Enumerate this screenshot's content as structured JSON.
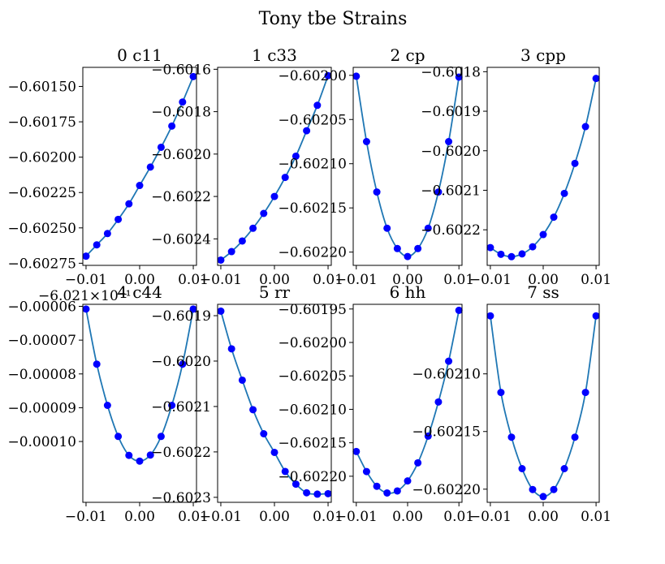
{
  "figure_title": "Tony tbe Strains",
  "colors": {
    "line": "#1f77b4",
    "marker": "#0000ff",
    "axes": "#000000"
  },
  "chart_data": [
    {
      "type": "line",
      "title": "0 c11",
      "x": [
        -0.01,
        -0.008,
        -0.006,
        -0.004,
        -0.002,
        0.0,
        0.002,
        0.004,
        0.006,
        0.008,
        0.01
      ],
      "series": [
        {
          "values": [
            -0.6027,
            -0.60262,
            -0.60254,
            -0.60244,
            -0.60233,
            -0.6022,
            -0.60207,
            -0.60193,
            -0.60178,
            -0.60161,
            -0.60143
          ]
        }
      ],
      "xticks": [
        "−0.01",
        "0.00",
        "0.01"
      ],
      "yticks": [
        "−0.60275",
        "−0.60250",
        "−0.60225",
        "−0.60200",
        "−0.60175",
        "−0.60150"
      ],
      "ytick_values": [
        -0.60275,
        -0.6025,
        -0.60225,
        -0.602,
        -0.60175,
        -0.6015
      ],
      "xlim": [
        -0.0106,
        0.0106
      ],
      "ylim": [
        -0.602765,
        -0.601365
      ]
    },
    {
      "type": "line",
      "title": "1 c33",
      "x": [
        -0.01,
        -0.008,
        -0.006,
        -0.004,
        -0.002,
        0.0,
        0.002,
        0.004,
        0.006,
        0.008,
        0.01
      ],
      "series": [
        {
          "values": [
            -0.6025,
            -0.60246,
            -0.60241,
            -0.60235,
            -0.60228,
            -0.6022,
            -0.60211,
            -0.60201,
            -0.60189,
            -0.60177,
            -0.60163
          ]
        }
      ],
      "xticks": [
        "−0.01",
        "0.00",
        "0.01"
      ],
      "yticks": [
        "−0.6024",
        "−0.6022",
        "−0.6020",
        "−0.6018",
        "−0.6016"
      ],
      "ytick_values": [
        -0.6024,
        -0.6022,
        -0.602,
        -0.6018,
        -0.6016
      ],
      "xlim": [
        -0.0106,
        0.0106
      ],
      "ylim": [
        -0.602525,
        -0.601591
      ]
    },
    {
      "type": "line",
      "title": "2 cp",
      "x": [
        -0.01,
        -0.008,
        -0.006,
        -0.004,
        -0.002,
        0.0,
        0.002,
        0.004,
        0.006,
        0.008,
        0.01
      ],
      "series": [
        {
          "values": [
            -0.602001,
            -0.602075,
            -0.602132,
            -0.602173,
            -0.602196,
            -0.602205,
            -0.602196,
            -0.602173,
            -0.602132,
            -0.602075,
            -0.602002
          ]
        }
      ],
      "xticks": [
        "−0.01",
        "0.00",
        "0.01"
      ],
      "yticks": [
        "−0.60220",
        "−0.60215",
        "−0.60210",
        "−0.60205",
        "−0.60200"
      ],
      "ytick_values": [
        -0.6022,
        -0.60215,
        -0.6021,
        -0.60205,
        -0.602
      ],
      "xlim": [
        -0.0106,
        0.0106
      ],
      "ylim": [
        -0.602215,
        -0.601991
      ]
    },
    {
      "type": "line",
      "title": "3 cpp",
      "x": [
        -0.01,
        -0.008,
        -0.006,
        -0.004,
        -0.002,
        0.0,
        0.002,
        0.004,
        0.006,
        0.008,
        0.01
      ],
      "series": [
        {
          "values": [
            -0.602245,
            -0.602262,
            -0.602268,
            -0.602261,
            -0.602243,
            -0.602212,
            -0.602168,
            -0.602108,
            -0.602032,
            -0.601939,
            -0.601817
          ]
        }
      ],
      "xticks": [
        "−0.01",
        "0.00",
        "0.01"
      ],
      "yticks": [
        "−0.6022",
        "−0.6021",
        "−0.6020",
        "−0.6019",
        "−0.6018"
      ],
      "ytick_values": [
        -0.6022,
        -0.6021,
        -0.602,
        -0.6019,
        -0.6018
      ],
      "xlim": [
        -0.0106,
        0.0106
      ],
      "ylim": [
        -0.60229,
        -0.601789
      ]
    },
    {
      "type": "line",
      "title": "4 c44",
      "offset_label": "−6.021×10⁻¹",
      "x": [
        -0.01,
        -0.008,
        -0.006,
        -0.004,
        -0.002,
        0.0,
        0.002,
        0.004,
        0.006,
        0.008,
        0.01
      ],
      "series": [
        {
          "values": [
            -6.08e-05,
            -7.71e-05,
            -8.93e-05,
            -9.85e-05,
            -0.0001041,
            -0.0001058,
            -0.000104,
            -9.85e-05,
            -8.93e-05,
            -7.71e-05,
            -6.08e-05
          ]
        }
      ],
      "xticks": [
        "−0.01",
        "0.00",
        "0.01"
      ],
      "yticks": [
        "−0.00010",
        "−0.00009",
        "−0.00008",
        "−0.00007",
        "−0.00006"
      ],
      "ytick_values": [
        -0.0001,
        -9e-05,
        -8e-05,
        -7e-05,
        -6e-05
      ],
      "xlim": [
        -0.0106,
        0.0106
      ],
      "ylim": [
        -0.000118,
        -5.94e-05
      ]
    },
    {
      "type": "line",
      "title": "5 rr",
      "x": [
        -0.01,
        -0.008,
        -0.006,
        -0.004,
        -0.002,
        0.0,
        0.002,
        0.004,
        0.006,
        0.008,
        0.01
      ],
      "series": [
        {
          "values": [
            -0.60189,
            -0.601973,
            -0.602042,
            -0.602107,
            -0.60216,
            -0.602201,
            -0.602243,
            -0.602271,
            -0.60229,
            -0.602293,
            -0.602292
          ]
        }
      ],
      "xticks": [
        "−0.01",
        "0.00",
        "0.01"
      ],
      "yticks": [
        "−0.6023",
        "−0.6022",
        "−0.6021",
        "−0.6020",
        "−0.6019"
      ],
      "ytick_values": [
        -0.6023,
        -0.6022,
        -0.6021,
        -0.602,
        -0.6019
      ],
      "xlim": [
        -0.0106,
        0.0106
      ],
      "ylim": [
        -0.602311,
        -0.601875
      ]
    },
    {
      "type": "line",
      "title": "6 hh",
      "x": [
        -0.01,
        -0.008,
        -0.006,
        -0.004,
        -0.002,
        0.0,
        0.002,
        0.004,
        0.006,
        0.008,
        0.01
      ],
      "series": [
        {
          "values": [
            -0.602163,
            -0.602193,
            -0.602215,
            -0.602225,
            -0.602222,
            -0.602207,
            -0.60218,
            -0.60214,
            -0.602089,
            -0.602028,
            -0.601952
          ]
        }
      ],
      "xticks": [
        "−0.01",
        "0.00",
        "0.01"
      ],
      "yticks": [
        "−0.60220",
        "−0.60215",
        "−0.60210",
        "−0.60205",
        "−0.60200",
        "−0.60195"
      ],
      "ytick_values": [
        -0.6022,
        -0.60215,
        -0.6021,
        -0.60205,
        -0.602,
        -0.60195
      ],
      "xlim": [
        -0.0106,
        0.0106
      ],
      "ylim": [
        -0.602239,
        -0.601943
      ]
    },
    {
      "type": "line",
      "title": "7 ss",
      "x": [
        -0.01,
        -0.008,
        -0.006,
        -0.004,
        -0.002,
        0.0,
        0.002,
        0.004,
        0.006,
        0.008,
        0.01
      ],
      "series": [
        {
          "values": [
            -0.6020497,
            -0.6021161,
            -0.6021549,
            -0.6021822,
            -0.6022003,
            -0.6022064,
            -0.6022003,
            -0.6021822,
            -0.6021549,
            -0.6021161,
            -0.6020497
          ]
        }
      ],
      "xticks": [
        "−0.01",
        "0.00",
        "0.01"
      ],
      "yticks": [
        "−0.60220",
        "−0.60215",
        "−0.60210"
      ],
      "ytick_values": [
        -0.6022,
        -0.60215,
        -0.6021
      ],
      "xlim": [
        -0.0106,
        0.0106
      ],
      "ylim": [
        -0.6022114,
        -0.6020397
      ]
    }
  ]
}
